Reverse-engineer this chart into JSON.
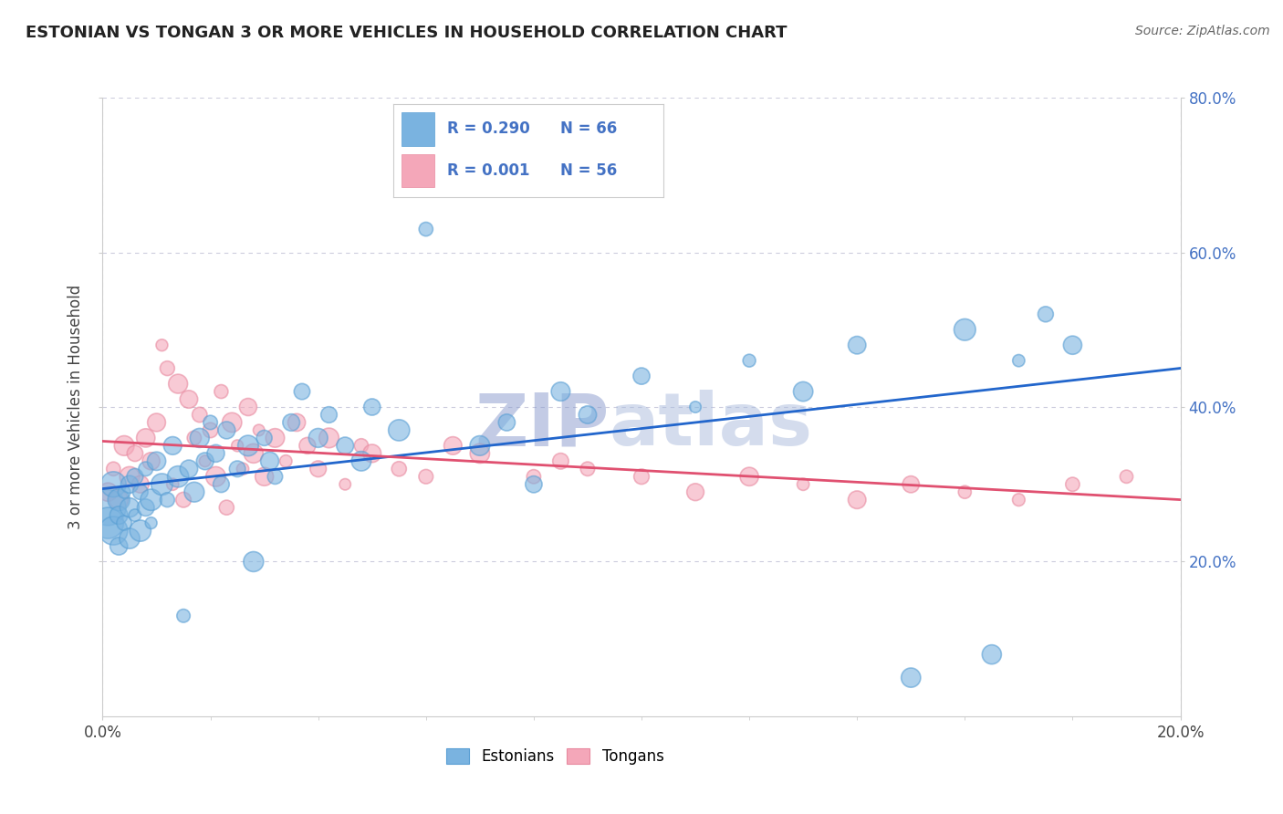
{
  "title": "ESTONIAN VS TONGAN 3 OR MORE VEHICLES IN HOUSEHOLD CORRELATION CHART",
  "source_text": "Source: ZipAtlas.com",
  "ylabel": "3 or more Vehicles in Household",
  "xlim": [
    0.0,
    0.2
  ],
  "ylim": [
    0.0,
    0.8
  ],
  "estonian_color": "#7ab3e0",
  "estonian_edge_color": "#5a9fd4",
  "tongan_color": "#f4a7b9",
  "tongan_edge_color": "#e88aa0",
  "estonian_line_color": "#2266cc",
  "tongan_line_color": "#e05070",
  "dashed_line_color": "#aaaacc",
  "grid_color": "#ccccdd",
  "watermark_zip_color": "#8899cc",
  "watermark_atlas_color": "#aabbdd",
  "background_color": "#ffffff",
  "estonian_R": 0.29,
  "tongan_R": 0.001,
  "estonian_N": 66,
  "tongan_N": 56,
  "right_ytick_color": "#4472c4",
  "ytick_color": "#888888"
}
